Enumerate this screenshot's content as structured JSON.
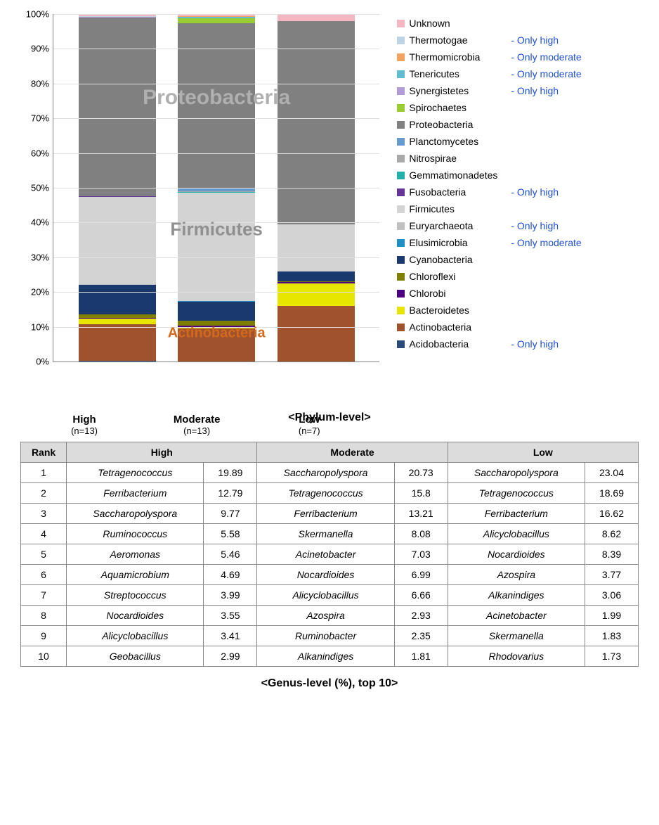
{
  "chart": {
    "type": "stacked-bar",
    "ylim": [
      0,
      100
    ],
    "ytick_step": 10,
    "y_suffix": "%",
    "background_color": "#ffffff",
    "grid_color": "#e0e0e0",
    "axis_color": "#808080",
    "categories": [
      {
        "name": "High",
        "n": "(n=13)"
      },
      {
        "name": "Moderate",
        "n": "(n=13)"
      },
      {
        "name": "Low",
        "n": "(n=7)"
      }
    ],
    "series_order": [
      "Acidobacteria",
      "Actinobacteria",
      "Bacteroidetes",
      "Chlorobi",
      "Chloroflexi",
      "Cyanobacteria",
      "Elusimicrobia",
      "Euryarchaeota",
      "Firmicutes",
      "Fusobacteria",
      "Gemmatimonadetes",
      "Nitrospirae",
      "Planctomycetes",
      "Proteobacteria",
      "Spirochaetes",
      "Synergistetes",
      "Tenericutes",
      "Thermomicrobia",
      "Thermotogae",
      "Unknown"
    ],
    "colors": {
      "Unknown": "#f4b6c2",
      "Thermotogae": "#bcd4e6",
      "Thermomicrobia": "#f4a460",
      "Tenericutes": "#5fbcd3",
      "Synergistetes": "#b19cd9",
      "Spirochaetes": "#9acd32",
      "Proteobacteria": "#808080",
      "Planctomycetes": "#6699cc",
      "Nitrospirae": "#a9a9a9",
      "Gemmatimonadetes": "#20b2aa",
      "Fusobacteria": "#663399",
      "Firmicutes": "#d3d3d3",
      "Euryarchaeota": "#c0c0c0",
      "Elusimicrobia": "#1e90c4",
      "Cyanobacteria": "#1a3a6e",
      "Chloroflexi": "#808000",
      "Chlorobi": "#4b0082",
      "Bacteroidetes": "#e6e600",
      "Actinobacteria": "#a0522d",
      "Acidobacteria": "#2a4a7a"
    },
    "values": {
      "High": {
        "Acidobacteria": 0.3,
        "Actinobacteria": 10.5,
        "Bacteroidetes": 1.5,
        "Chlorobi": 0.2,
        "Chloroflexi": 1.0,
        "Cyanobacteria": 8.5,
        "Elusimicrobia": 0,
        "Euryarchaeota": 0.3,
        "Firmicutes": 25.0,
        "Fusobacteria": 0.2,
        "Gemmatimonadetes": 0,
        "Nitrospirae": 0,
        "Planctomycetes": 0,
        "Proteobacteria": 51.5,
        "Spirochaetes": 0,
        "Synergistetes": 0.3,
        "Tenericutes": 0,
        "Thermomicrobia": 0,
        "Thermotogae": 0.2,
        "Unknown": 0.5
      },
      "Moderate": {
        "Acidobacteria": 0,
        "Actinobacteria": 9.5,
        "Bacteroidetes": 0.5,
        "Chlorobi": 0.3,
        "Chloroflexi": 1.5,
        "Cyanobacteria": 5.5,
        "Elusimicrobia": 0.2,
        "Euryarchaeota": 0,
        "Firmicutes": 31.0,
        "Fusobacteria": 0,
        "Gemmatimonadetes": 0.3,
        "Nitrospirae": 0.2,
        "Planctomycetes": 0.8,
        "Proteobacteria": 47.5,
        "Spirochaetes": 1.5,
        "Synergistetes": 0,
        "Tenericutes": 0.5,
        "Thermomicrobia": 0.2,
        "Thermotogae": 0,
        "Unknown": 0.5
      },
      "Low": {
        "Acidobacteria": 0,
        "Actinobacteria": 16.0,
        "Bacteroidetes": 6.5,
        "Chlorobi": 0.3,
        "Chloroflexi": 0.2,
        "Cyanobacteria": 3.0,
        "Elusimicrobia": 0,
        "Euryarchaeota": 0,
        "Firmicutes": 13.5,
        "Fusobacteria": 0,
        "Gemmatimonadetes": 0,
        "Nitrospirae": 0,
        "Planctomycetes": 0,
        "Proteobacteria": 58.5,
        "Spirochaetes": 0,
        "Synergistetes": 0,
        "Tenericutes": 0,
        "Thermomicrobia": 0,
        "Thermotogae": 0,
        "Unknown": 2.0
      }
    },
    "legend_items": [
      {
        "name": "Unknown",
        "note": ""
      },
      {
        "name": "Thermotogae",
        "note": "- Only high"
      },
      {
        "name": "Thermomicrobia",
        "note": "- Only moderate"
      },
      {
        "name": "Tenericutes",
        "note": "- Only moderate"
      },
      {
        "name": "Synergistetes",
        "note": "- Only high"
      },
      {
        "name": "Spirochaetes",
        "note": ""
      },
      {
        "name": "Proteobacteria",
        "note": ""
      },
      {
        "name": "Planctomycetes",
        "note": ""
      },
      {
        "name": "Nitrospirae",
        "note": ""
      },
      {
        "name": "Gemmatimonadetes",
        "note": ""
      },
      {
        "name": "Fusobacteria",
        "note": "- Only high"
      },
      {
        "name": "Firmicutes",
        "note": ""
      },
      {
        "name": "Euryarchaeota",
        "note": "- Only high"
      },
      {
        "name": "Elusimicrobia",
        "note": "- Only moderate"
      },
      {
        "name": "Cyanobacteria",
        "note": ""
      },
      {
        "name": "Chloroflexi",
        "note": ""
      },
      {
        "name": "Chlorobi",
        "note": ""
      },
      {
        "name": "Bacteroidetes",
        "note": ""
      },
      {
        "name": "Actinobacteria",
        "note": ""
      },
      {
        "name": "Acidobacteria",
        "note": "- Only high"
      }
    ],
    "overlays": [
      {
        "text": "Proteobacteria",
        "top_pct": 24,
        "color": "#b0b0b0",
        "fontsize": 30
      },
      {
        "text": "Firmicutes",
        "top_pct": 62,
        "color": "#909090",
        "fontsize": 26
      },
      {
        "text": "Actinobacteria",
        "top_pct": 92,
        "color": "#d2691e",
        "fontsize": 20
      }
    ],
    "caption": "<Phylum-level>"
  },
  "table": {
    "caption": "<Genus-level (%), top 10>",
    "headers": [
      "Rank",
      "High",
      "Moderate",
      "Low"
    ],
    "rows": [
      {
        "rank": 1,
        "high_name": "Tetragenococcus",
        "high_val": "19.89",
        "mod_name": "Saccharopolyspora",
        "mod_val": "20.73",
        "low_name": "Saccharopolyspora",
        "low_val": "23.04"
      },
      {
        "rank": 2,
        "high_name": "Ferribacterium",
        "high_val": "12.79",
        "mod_name": "Tetragenococcus",
        "mod_val": "15.8",
        "low_name": "Tetragenococcus",
        "low_val": "18.69"
      },
      {
        "rank": 3,
        "high_name": "Saccharopolyspora",
        "high_val": "9.77",
        "mod_name": "Ferribacterium",
        "mod_val": "13.21",
        "low_name": "Ferribacterium",
        "low_val": "16.62"
      },
      {
        "rank": 4,
        "high_name": "Ruminococcus",
        "high_val": "5.58",
        "mod_name": "Skermanella",
        "mod_val": "8.08",
        "low_name": "Alicyclobacillus",
        "low_val": "8.62"
      },
      {
        "rank": 5,
        "high_name": "Aeromonas",
        "high_val": "5.46",
        "mod_name": "Acinetobacter",
        "mod_val": "7.03",
        "low_name": "Nocardioides",
        "low_val": "8.39"
      },
      {
        "rank": 6,
        "high_name": "Aquamicrobium",
        "high_val": "4.69",
        "mod_name": "Nocardioides",
        "mod_val": "6.99",
        "low_name": "Azospira",
        "low_val": "3.77"
      },
      {
        "rank": 7,
        "high_name": "Streptococcus",
        "high_val": "3.99",
        "mod_name": "Alicyclobacillus",
        "mod_val": "6.66",
        "low_name": "Alkanindiges",
        "low_val": "3.06"
      },
      {
        "rank": 8,
        "high_name": "Nocardioides",
        "high_val": "3.55",
        "mod_name": "Azospira",
        "mod_val": "2.93",
        "low_name": "Acinetobacter",
        "low_val": "1.99"
      },
      {
        "rank": 9,
        "high_name": "Alicyclobacillus",
        "high_val": "3.41",
        "mod_name": "Ruminobacter",
        "mod_val": "2.35",
        "low_name": "Skermanella",
        "low_val": "1.83"
      },
      {
        "rank": 10,
        "high_name": "Geobacillus",
        "high_val": "2.99",
        "mod_name": "Alkanindiges",
        "mod_val": "1.81",
        "low_name": "Rhodovarius",
        "low_val": "1.73"
      }
    ]
  }
}
